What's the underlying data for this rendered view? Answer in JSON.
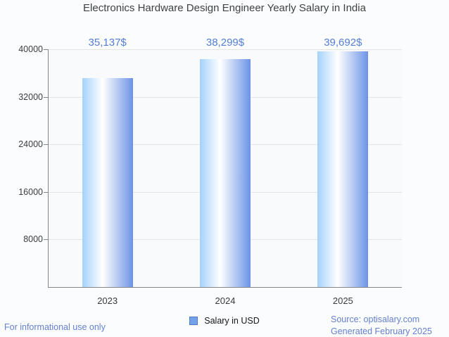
{
  "page": {
    "background": "#fbfcfe",
    "footer_left": "For informational use only",
    "source": {
      "line1": "Source: optisalary.com",
      "line2": "Generated February 2025"
    },
    "link_color": "#6480ce"
  },
  "chart_data": {
    "type": "bar",
    "title": "Electronics Hardware Design Engineer Yearly Salary in India",
    "categories": [
      "2023",
      "2024",
      "2025"
    ],
    "series": [
      {
        "name": "Salary in USD",
        "values": [
          35137,
          38299,
          39692
        ]
      }
    ],
    "value_labels": [
      "35,137$",
      "38,299$",
      "39,692$"
    ],
    "xlabel": "",
    "ylabel": "",
    "ylim": [
      0,
      40000
    ],
    "yticks": [
      40000,
      32000,
      24000,
      16000,
      8000
    ],
    "ytick_labels": [
      "40000",
      "32000",
      "24000",
      "16000",
      "8000"
    ],
    "grid": true,
    "legend_position": "bottom",
    "colors": {
      "value_label": "#537dd6",
      "bar_gradient": [
        "#a5d2fa",
        "#ffffff",
        "#6b93e7"
      ],
      "legend_swatch_fill": "#73a1ea",
      "legend_swatch_border": "#4c7dcd",
      "axis": "#868686",
      "gridline": "#e4e4e4",
      "title_text": "#414141"
    }
  }
}
